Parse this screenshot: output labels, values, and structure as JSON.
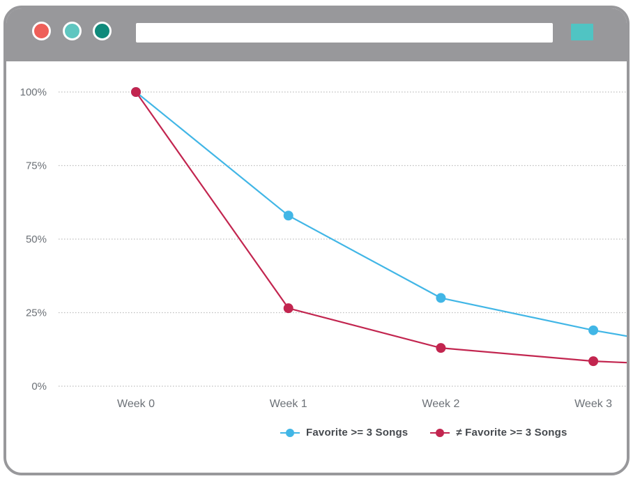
{
  "browser": {
    "url_value": "",
    "url_placeholder": "",
    "controls": [
      {
        "id": "window-button-red",
        "color": "#EE5F59"
      },
      {
        "id": "window-button-teal",
        "color": "#5FC6C0"
      },
      {
        "id": "window-button-dark-teal",
        "color": "#0F8A7B"
      }
    ],
    "action_button_color": "#50C4C3",
    "chrome_color": "#98989B"
  },
  "colors": {
    "gridline": "#BDBDBD",
    "y_tick_label": "#6B7076",
    "x_tick_label": "#6B7076",
    "legend_text": "#45494E",
    "plot_background": "#FFFFFF"
  },
  "chart_data": {
    "type": "line",
    "title": "",
    "xlabel": "",
    "ylabel": "",
    "categories": [
      "Week 0",
      "Week 1",
      "Week 2",
      "Week 3"
    ],
    "series": [
      {
        "name": "Favorite >= 3 Songs",
        "color": "#41B6E6",
        "values": [
          100,
          58,
          30,
          19
        ],
        "clipped_end_value": 17
      },
      {
        "name": "≠ Favorite >= 3 Songs",
        "color": "#C2254F",
        "values": [
          100,
          26.5,
          13,
          8.5
        ],
        "clipped_end_value": 8
      }
    ],
    "y_ticks": [
      0,
      25,
      50,
      75,
      100
    ],
    "y_tick_labels": [
      "0%",
      "25%",
      "50%",
      "75%",
      "100%"
    ],
    "ylim": [
      0,
      100
    ],
    "unit": "%",
    "grid": "dotted-horizontal",
    "legend_position": "bottom"
  }
}
